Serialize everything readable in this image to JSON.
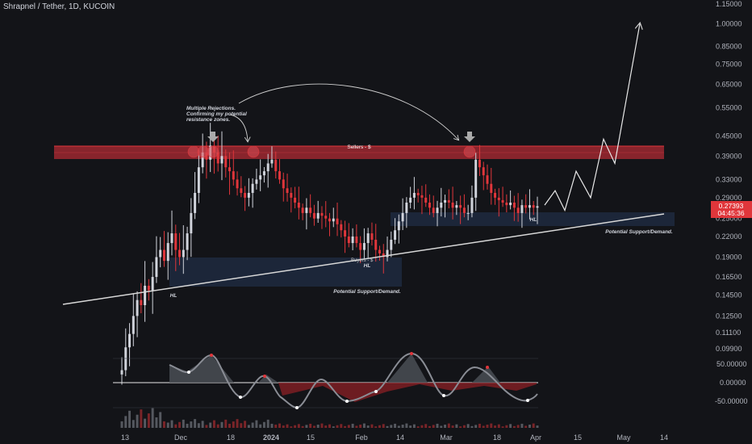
{
  "header": {
    "symbol": "Shrapnel / Tether",
    "interval": "1D",
    "exchange": "KUCOIN"
  },
  "chart_data": {
    "type": "candlestick",
    "y_scale": "log",
    "ylim": [
      0.08,
      1.2
    ],
    "price_axis_ticks": [
      "1.15000",
      "1.00000",
      "0.85000",
      "0.75000",
      "0.65000",
      "0.55000",
      "0.45000",
      "0.39000",
      "0.33000",
      "0.29000",
      "0.25000",
      "0.22000",
      "0.19000",
      "0.16500",
      "0.14500",
      "0.12500",
      "0.11100",
      "0.09900"
    ],
    "time_axis_labels": [
      {
        "label": "13",
        "bold": false
      },
      {
        "label": "Dec",
        "bold": false
      },
      {
        "label": "18",
        "bold": false
      },
      {
        "label": "2024",
        "bold": true
      },
      {
        "label": "15",
        "bold": false
      },
      {
        "label": "Feb",
        "bold": false
      },
      {
        "label": "14",
        "bold": false
      },
      {
        "label": "Mar",
        "bold": false
      },
      {
        "label": "18",
        "bold": false
      },
      {
        "label": "Apr",
        "bold": false
      },
      {
        "label": "15",
        "bold": false
      },
      {
        "label": "May",
        "bold": false
      },
      {
        "label": "14",
        "bold": false
      }
    ],
    "last_price": "0.27393",
    "countdown": "04:45:36",
    "colors": {
      "up": "#d1d4dc",
      "down": "#e0363b",
      "resistance": "#c92d35",
      "zone": "#1f2940",
      "trendline": "#d8d8d8"
    },
    "candles_close": [
      0.085,
      0.1,
      0.11,
      0.125,
      0.14,
      0.135,
      0.155,
      0.15,
      0.165,
      0.19,
      0.2,
      0.185,
      0.21,
      0.225,
      0.2,
      0.19,
      0.2,
      0.225,
      0.26,
      0.3,
      0.36,
      0.4,
      0.38,
      0.42,
      0.4,
      0.37,
      0.39,
      0.36,
      0.35,
      0.33,
      0.31,
      0.3,
      0.29,
      0.3,
      0.32,
      0.33,
      0.34,
      0.35,
      0.37,
      0.38,
      0.35,
      0.33,
      0.31,
      0.3,
      0.29,
      0.28,
      0.27,
      0.26,
      0.27,
      0.26,
      0.25,
      0.26,
      0.255,
      0.25,
      0.245,
      0.25,
      0.24,
      0.23,
      0.22,
      0.21,
      0.22,
      0.21,
      0.2,
      0.21,
      0.225,
      0.215,
      0.2,
      0.195,
      0.19,
      0.2,
      0.215,
      0.23,
      0.245,
      0.26,
      0.28,
      0.29,
      0.3,
      0.295,
      0.29,
      0.28,
      0.27,
      0.26,
      0.27,
      0.28,
      0.285,
      0.28,
      0.27,
      0.275,
      0.27,
      0.26,
      0.26,
      0.29,
      0.38,
      0.36,
      0.34,
      0.32,
      0.3,
      0.29,
      0.285,
      0.28,
      0.275,
      0.28,
      0.27,
      0.26,
      0.275,
      0.27,
      0.275,
      0.27,
      0.273
    ],
    "projection": [
      0.275,
      0.305,
      0.265,
      0.35,
      0.29,
      0.44,
      0.37,
      1.0
    ],
    "resistance_zone": {
      "lower": 0.375,
      "upper": 0.415,
      "label": "Sellers - $"
    },
    "demand_zones": [
      {
        "lower": 0.155,
        "upper": 0.19,
        "label": "Potential Support/Demand."
      },
      {
        "lower": 0.23,
        "upper": 0.26,
        "label": "Potential Support/Demand."
      }
    ],
    "trendline": {
      "label_start": "Buyers - $"
    },
    "annotations": {
      "callout": [
        "Multiple Rejections.",
        "Confirming my potential",
        "resistance zones."
      ],
      "hl_labels": [
        "HL",
        "HL",
        "HL"
      ]
    },
    "oscillator": {
      "ticks": [
        "50.00000",
        "0.00000",
        "-50.00000"
      ]
    }
  }
}
